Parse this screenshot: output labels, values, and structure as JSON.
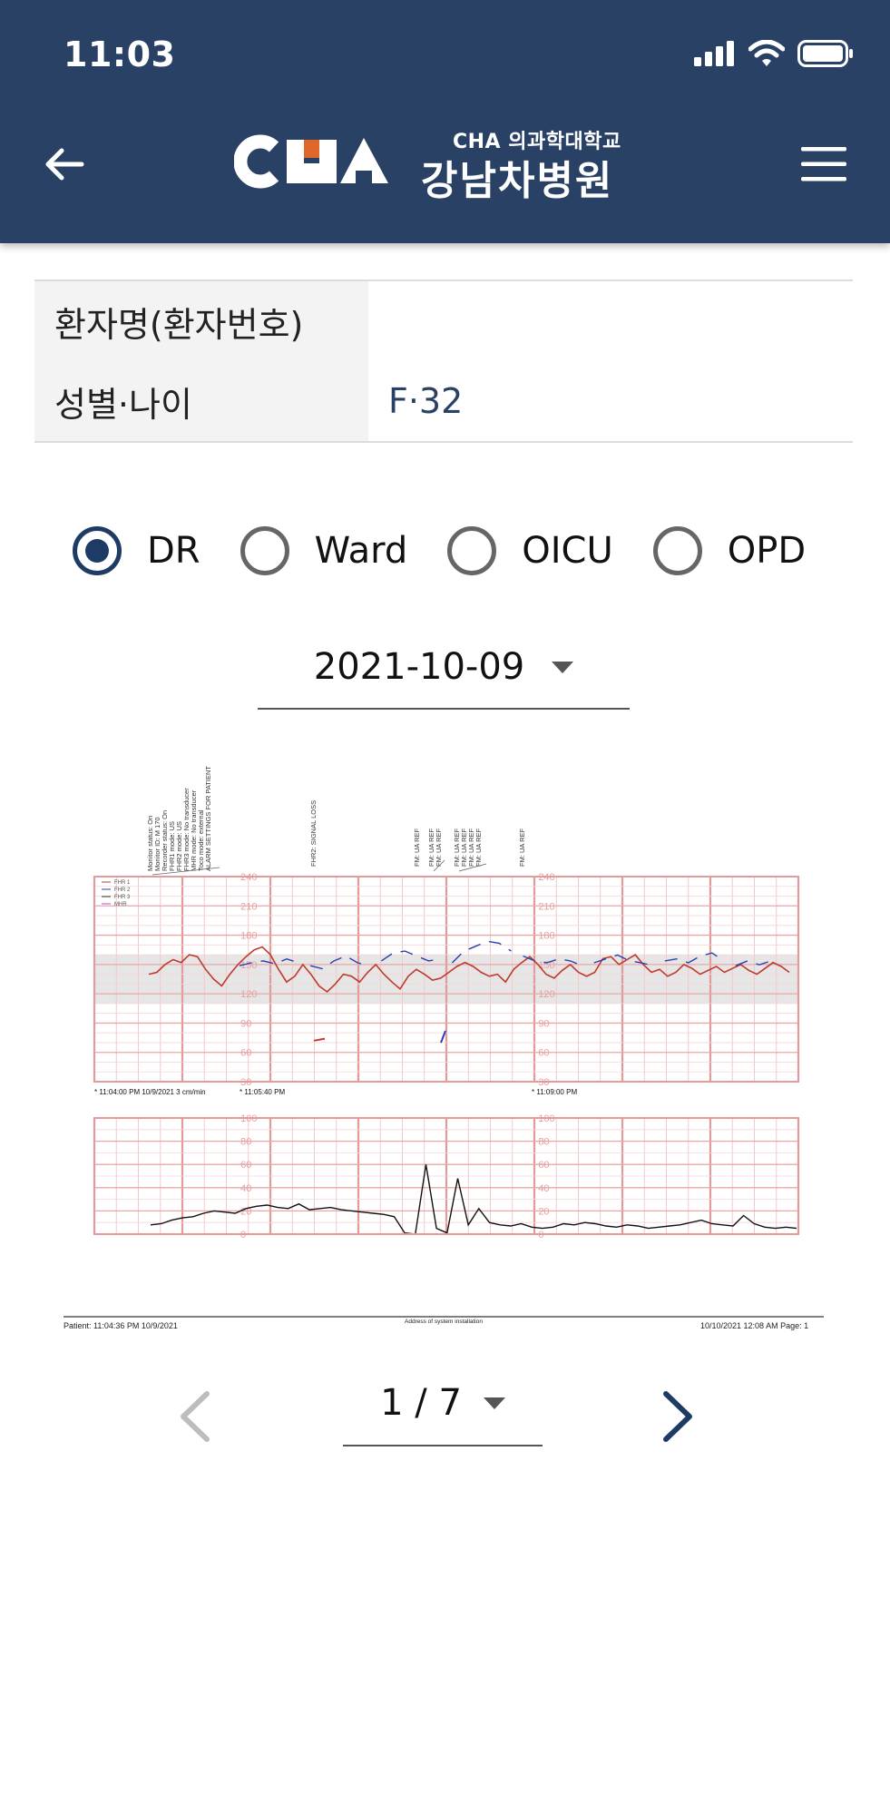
{
  "status_bar": {
    "time": "11:03"
  },
  "header": {
    "logo_sub": "CHA 의과학대학교",
    "logo_main": "강남차병원"
  },
  "patient": {
    "rows": [
      {
        "label": "환자명(환자번호)",
        "value": ""
      },
      {
        "label": "성별·나이",
        "value": "F·32"
      }
    ]
  },
  "location_filter": {
    "options": [
      {
        "label": "DR",
        "checked": true
      },
      {
        "label": "Ward",
        "checked": false
      },
      {
        "label": "OICU",
        "checked": false
      },
      {
        "label": "OPD",
        "checked": false
      }
    ]
  },
  "date_select": {
    "value": "2021-10-09"
  },
  "chart_data": {
    "type": "line",
    "title": "",
    "legend": [
      "FHR 1",
      "FHR 2",
      "FHR 3",
      "MHR"
    ],
    "legend_position": "top-left",
    "fhr_ticks": [
      "240",
      "210",
      "180",
      "150",
      "120",
      "90",
      "60",
      "30"
    ],
    "ua_ticks": [
      "100",
      "80",
      "60",
      "40",
      "20",
      "0"
    ],
    "annotations_left": [
      "Monitor status: On",
      "Monitor ID: M 170",
      "Recorder status: On",
      "FHR1 mode: US",
      "FHR2 mode: US",
      "FHR3 mode: No transducer",
      "MHR mode: No transducer",
      "Toco mode: external",
      "ALARM SETTINGS FOR PATIENT"
    ],
    "annotation_mid": "FHR2: SIGNAL LOSS",
    "annotations_fm": [
      "FM: UA REF",
      "FM: UA REF",
      "FM: UA REF",
      "FM: UA REF",
      "FM: UA REF",
      "FM: UA REF",
      "FM: UA REF",
      "FM: UA REF"
    ],
    "time_labels": [
      "* 11:04:00 PM  10/9/2021  3 cm/min",
      "* 11:05:40 PM",
      "* 11:09:00 PM"
    ],
    "footer": {
      "patient": "Patient: 11:04:36 PM 10/9/2021",
      "center": "Address of system installation",
      "right": "10/10/2021 12:08 AM  Page: 1"
    },
    "fhr1_series": [
      140,
      142,
      150,
      155,
      152,
      160,
      158,
      145,
      135,
      128,
      140,
      150,
      158,
      165,
      168,
      160,
      145,
      132,
      138,
      150,
      140,
      128,
      122,
      130,
      140,
      138,
      132,
      142,
      150,
      140,
      132,
      125,
      138,
      145,
      140,
      134,
      136,
      142,
      148,
      152,
      148,
      142,
      138,
      140,
      132,
      145,
      152,
      158,
      150,
      140,
      136,
      144,
      150,
      142,
      138,
      142,
      156,
      158,
      150,
      155,
      160,
      150,
      142,
      145,
      138,
      142,
      150,
      146,
      140,
      144,
      148,
      142,
      146,
      150,
      144,
      140,
      146,
      152,
      148,
      142
    ],
    "fhr2_series": [
      145,
      148,
      150,
      147,
      152,
      148,
      145,
      142,
      150,
      155,
      148,
      145,
      150,
      158,
      160,
      155,
      150,
      152,
      148,
      160,
      165,
      170,
      168,
      160,
      155,
      150,
      148,
      152,
      150,
      145,
      148,
      152,
      156,
      150,
      148,
      145,
      150,
      152,
      148,
      155,
      158,
      150,
      145,
      150,
      146,
      150
    ],
    "ua_series": [
      8,
      9,
      12,
      14,
      15,
      18,
      20,
      19,
      18,
      22,
      24,
      25,
      23,
      22,
      26,
      21,
      22,
      23,
      21,
      20,
      19,
      18,
      17,
      15,
      1,
      0,
      60,
      5,
      1,
      48,
      8,
      22,
      10,
      8,
      7,
      9,
      6,
      5,
      6,
      9,
      8,
      10,
      9,
      7,
      6,
      8,
      7,
      5,
      6,
      7,
      8,
      10,
      12,
      9,
      8,
      7,
      16,
      9,
      6,
      5,
      6,
      5
    ]
  },
  "pager": {
    "label": "1 / 7"
  }
}
